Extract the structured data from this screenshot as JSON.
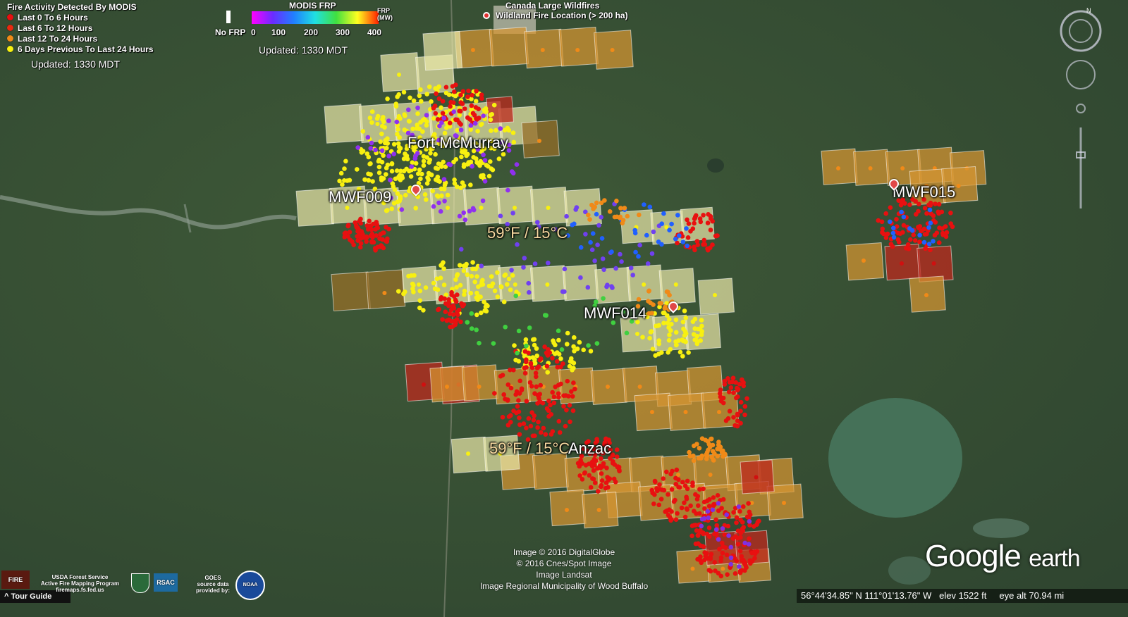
{
  "legend_modis": {
    "title": "Fire Activity Detected By MODIS",
    "items": [
      {
        "label": "Last 0 To 6 Hours",
        "color": "#e81010"
      },
      {
        "label": "Last 6 To 12 Hours",
        "color": "#e82a10"
      },
      {
        "label": "Last 12 To 24 Hours",
        "color": "#f08a18"
      },
      {
        "label": "6 Days Previous To Last 24 Hours",
        "color": "#f8f010"
      }
    ],
    "updated": "Updated: 1330 MDT"
  },
  "legend_frp": {
    "title": "MODIS FRP",
    "no_frp": "No FRP",
    "ticks": [
      "0",
      "100",
      "200",
      "300",
      "400"
    ],
    "unit": "FRP\n(MW)",
    "updated": "Updated: 1330 MDT"
  },
  "legend_canada": {
    "title": "Canada Large Wildfires",
    "item": "Wildland Fire  Location (> 200 ha)"
  },
  "places": {
    "fort_mcmurray": "Fort McMurray",
    "mwf009": "MWF009",
    "mwf014": "MWF014",
    "mwf015": "MWF015",
    "anzac": "Anzac",
    "temp1": "59°F / 15°C",
    "temp2": "59°F / 15°C"
  },
  "credits": [
    "Image © 2016 DigitalGlobe",
    "© 2016 Cnes/Spot Image",
    "Image Landsat",
    "Image Regional Municipality of Wood Buffalo"
  ],
  "logo": {
    "google": "Google",
    "earth": "earth"
  },
  "status": {
    "coords": "56°44'34.85\" N  111°01'13.76\" W",
    "elev": "elev  1522 ft",
    "eye_alt": "eye alt  70.94 mi"
  },
  "tour_guide": "Tour Guide",
  "agencies": {
    "usda": "USDA Forest Service\nActive Fire Mapping Program\nfiremaps.fs.fed.us",
    "rsac": "RSAC",
    "goes": "GOES\nsource data\nprovided by:",
    "noaa": "NOAA",
    "fire": "FIRE"
  },
  "colors": {
    "fire_red": "#e81010",
    "fire_orange": "#f08a18",
    "fire_yellow": "#f8f010",
    "footprint_yellow": "#e8e6a0",
    "footprint_orange": "#d89a30",
    "footprint_red": "#b83020",
    "terrain": "#3a5535"
  }
}
